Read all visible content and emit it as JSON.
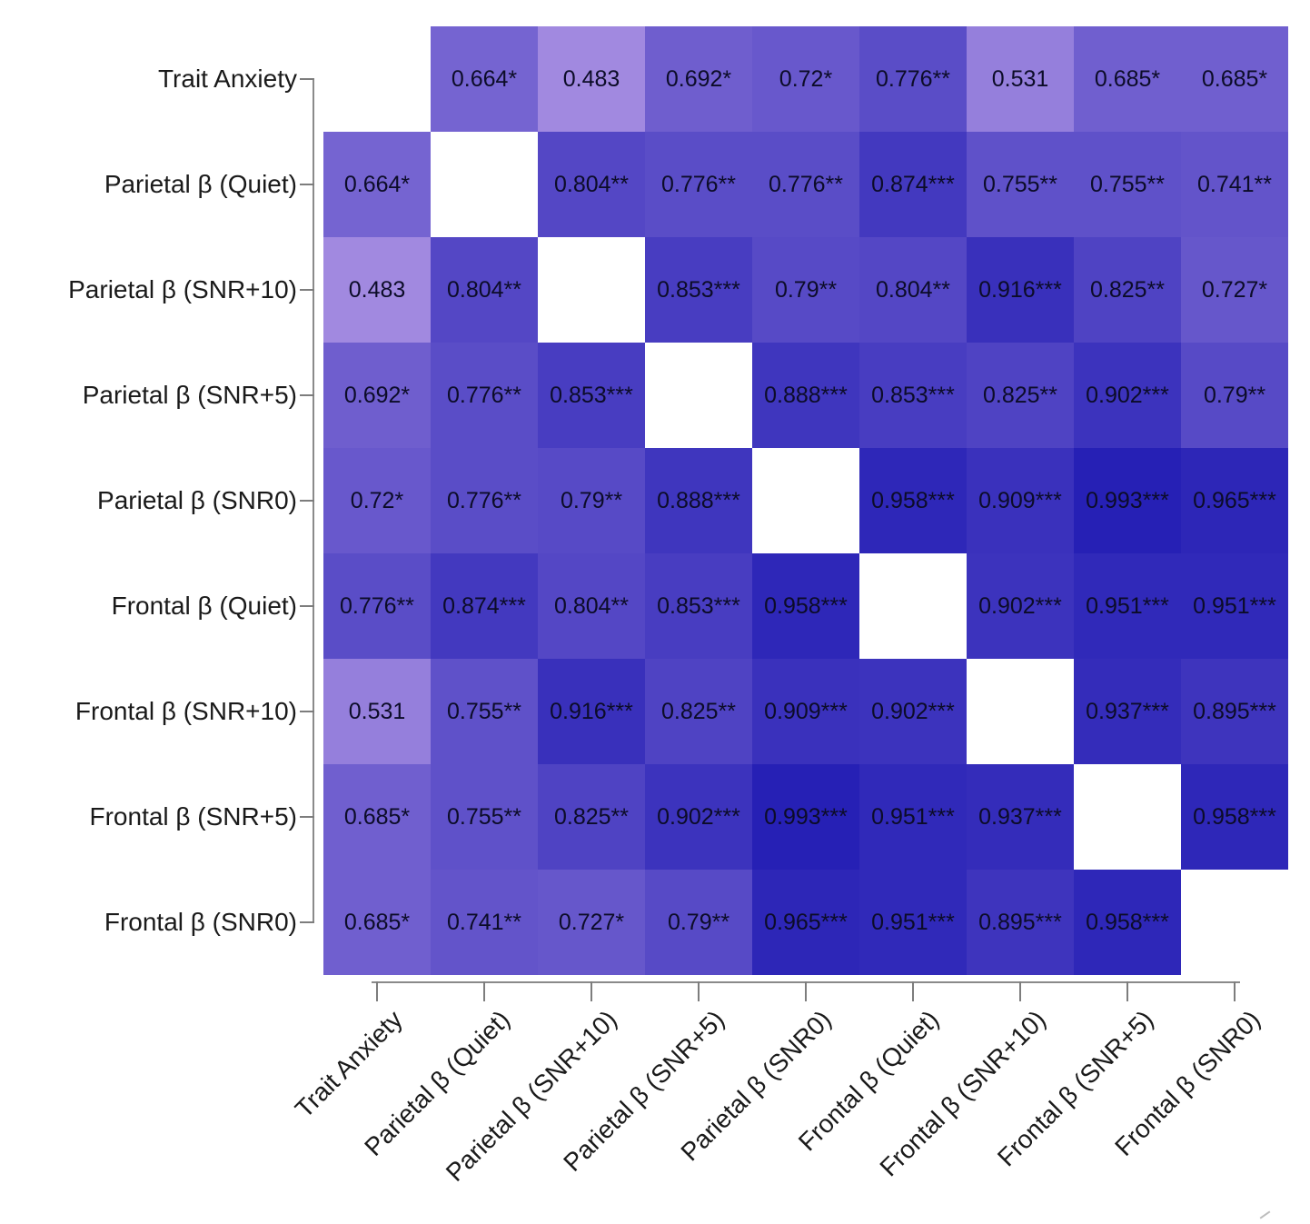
{
  "chart_data": {
    "type": "heatmap",
    "title": "",
    "variables": [
      "Trait Anxiety",
      "Parietal β (Quiet)",
      "Parietal β (SNR+10)",
      "Parietal β (SNR+5)",
      "Parietal β (SNR0)",
      "Frontal β (Quiet)",
      "Frontal β (SNR+10)",
      "Frontal β (SNR+5)",
      "Frontal β (SNR0)"
    ],
    "cells": [
      [
        "",
        "0.664*",
        "0.483",
        "0.692*",
        "0.72*",
        "0.776**",
        "0.531",
        "0.685*",
        "0.685*"
      ],
      [
        "0.664*",
        "",
        "0.804**",
        "0.776**",
        "0.776**",
        "0.874***",
        "0.755**",
        "0.755**",
        "0.741**"
      ],
      [
        "0.483",
        "0.804**",
        "",
        "0.853***",
        "0.79**",
        "0.804**",
        "0.916***",
        "0.825**",
        "0.727*"
      ],
      [
        "0.692*",
        "0.776**",
        "0.853***",
        "",
        "0.888***",
        "0.853***",
        "0.825**",
        "0.902***",
        "0.79**"
      ],
      [
        "0.72*",
        "0.776**",
        "0.79**",
        "0.888***",
        "",
        "0.958***",
        "0.909***",
        "0.993***",
        "0.965***"
      ],
      [
        "0.776**",
        "0.874***",
        "0.804**",
        "0.853***",
        "0.958***",
        "",
        "0.902***",
        "0.951***",
        "0.951***"
      ],
      [
        "0.531",
        "0.755**",
        "0.916***",
        "0.825**",
        "0.909***",
        "0.902***",
        "",
        "0.937***",
        "0.895***"
      ],
      [
        "0.685*",
        "0.755**",
        "0.825**",
        "0.902***",
        "0.993***",
        "0.951***",
        "0.937***",
        "",
        "0.958***"
      ],
      [
        "0.685*",
        "0.741**",
        "0.727*",
        "0.79**",
        "0.965***",
        "0.951***",
        "0.895***",
        "0.958***",
        ""
      ]
    ],
    "colorscale": {
      "low_value": 0.483,
      "low_color": "#a189e0",
      "high_value": 0.993,
      "high_color": "#2620b5",
      "diagonal_color": "#ffffff"
    },
    "layout_hints": {
      "grid": "off",
      "legend": "none",
      "x_tick_angle": 45,
      "axis_color": "#8a8a8a",
      "value_text_color": "#0c0c28"
    }
  }
}
